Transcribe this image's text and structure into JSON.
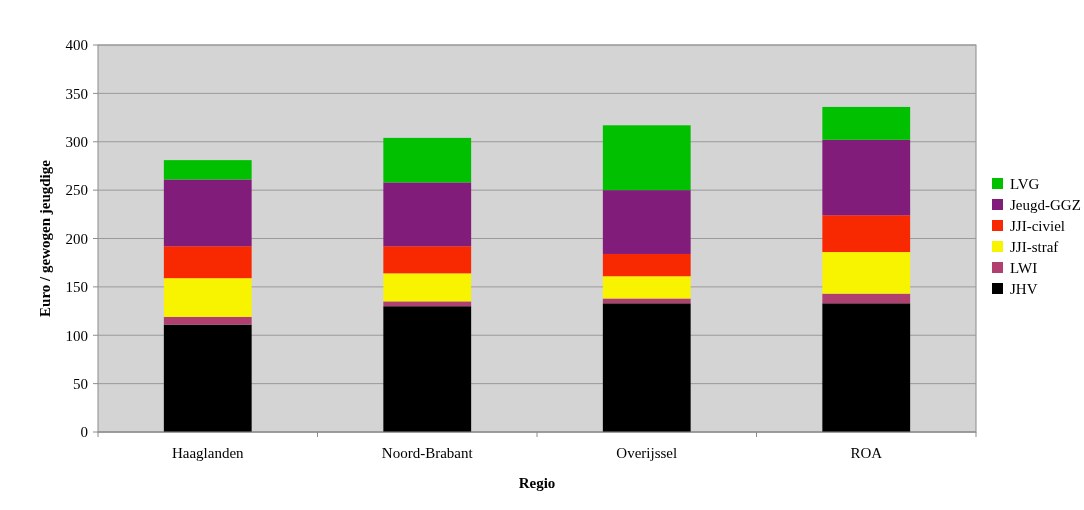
{
  "chart_data": {
    "type": "bar",
    "stacked": true,
    "xlabel": "Regio",
    "ylabel": "Euro / gewogen jeugdige",
    "categories": [
      "Haaglanden",
      "Noord-Brabant",
      "Overijssel",
      "ROA"
    ],
    "series": [
      {
        "name": "JHV",
        "color": "#000000",
        "values": [
          111,
          130,
          133,
          133
        ]
      },
      {
        "name": "LWI",
        "color": "#b04070",
        "values": [
          8,
          5,
          5,
          10
        ]
      },
      {
        "name": "JJI-straf",
        "color": "#f8f400",
        "values": [
          40,
          29,
          23,
          43
        ]
      },
      {
        "name": "JJI-civiel",
        "color": "#f82800",
        "values": [
          33,
          28,
          23,
          38
        ]
      },
      {
        "name": "Jeugd-GGZ",
        "color": "#821c7a",
        "values": [
          69,
          66,
          66,
          78
        ]
      },
      {
        "name": "LVG",
        "color": "#00c000",
        "values": [
          20,
          46,
          67,
          34
        ]
      }
    ],
    "ylim": [
      0,
      400
    ],
    "yticks": [
      0,
      50,
      100,
      150,
      200,
      250,
      300,
      350,
      400
    ],
    "grid": "y",
    "legend": "right"
  }
}
